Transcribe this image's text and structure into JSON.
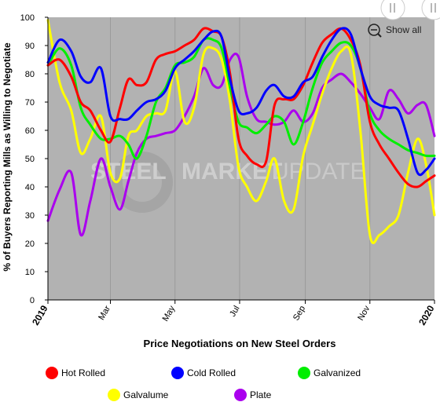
{
  "chart_data": {
    "type": "line",
    "title": "",
    "xlabel": "Price Negotiations on New Steel Orders",
    "ylabel": "% of Buyers Reporting Mills as Willing to Negotiate",
    "ylim": [
      0,
      100
    ],
    "yticks": [
      0,
      10,
      20,
      30,
      40,
      50,
      60,
      70,
      80,
      90,
      100
    ],
    "xticks": [
      {
        "label": "2019",
        "x": "2019-01-01",
        "bold": true
      },
      {
        "label": "Mar",
        "x": "2019-03-01",
        "bold": false
      },
      {
        "label": "May",
        "x": "2019-05-01",
        "bold": false
      },
      {
        "label": "Jul",
        "x": "2019-07-01",
        "bold": false
      },
      {
        "label": "Sep",
        "x": "2019-09-01",
        "bold": false
      },
      {
        "label": "Nov",
        "x": "2019-11-01",
        "bold": false
      },
      {
        "label": "2020",
        "x": "2020-01-01",
        "bold": true
      }
    ],
    "legend_position": "bottom",
    "grid": "vertical",
    "series": [
      {
        "name": "Hot Rolled",
        "color": "#ff0000",
        "points": [
          [
            "2019-01-01",
            83
          ],
          [
            "2019-01-12",
            85
          ],
          [
            "2019-01-23",
            79
          ],
          [
            "2019-02-01",
            70
          ],
          [
            "2019-02-10",
            67
          ],
          [
            "2019-02-20",
            60
          ],
          [
            "2019-03-01",
            56
          ],
          [
            "2019-03-10",
            68
          ],
          [
            "2019-03-18",
            78
          ],
          [
            "2019-03-26",
            76
          ],
          [
            "2019-04-04",
            77
          ],
          [
            "2019-04-13",
            85
          ],
          [
            "2019-04-22",
            87
          ],
          [
            "2019-05-01",
            88
          ],
          [
            "2019-05-10",
            90
          ],
          [
            "2019-05-19",
            92
          ],
          [
            "2019-05-28",
            96
          ],
          [
            "2019-06-06",
            95
          ],
          [
            "2019-06-14",
            93
          ],
          [
            "2019-06-22",
            80
          ],
          [
            "2019-06-30",
            57
          ],
          [
            "2019-07-08",
            51
          ],
          [
            "2019-07-17",
            48
          ],
          [
            "2019-07-26",
            49
          ],
          [
            "2019-08-03",
            69
          ],
          [
            "2019-08-12",
            71
          ],
          [
            "2019-08-21",
            71
          ],
          [
            "2019-08-30",
            76
          ],
          [
            "2019-09-08",
            84
          ],
          [
            "2019-09-17",
            91
          ],
          [
            "2019-09-26",
            94
          ],
          [
            "2019-10-05",
            96
          ],
          [
            "2019-10-14",
            92
          ],
          [
            "2019-10-23",
            83
          ],
          [
            "2019-11-01",
            63
          ],
          [
            "2019-11-10",
            55
          ],
          [
            "2019-11-19",
            50
          ],
          [
            "2019-11-28",
            45
          ],
          [
            "2019-12-07",
            41
          ],
          [
            "2019-12-16",
            40
          ],
          [
            "2019-12-24",
            42
          ],
          [
            "2020-01-01",
            44
          ]
        ]
      },
      {
        "name": "Cold Rolled",
        "color": "#0000ff",
        "points": [
          [
            "2019-01-01",
            84
          ],
          [
            "2019-01-12",
            92
          ],
          [
            "2019-01-23",
            88
          ],
          [
            "2019-02-01",
            79
          ],
          [
            "2019-02-10",
            77
          ],
          [
            "2019-02-20",
            82
          ],
          [
            "2019-03-01",
            65
          ],
          [
            "2019-03-10",
            64
          ],
          [
            "2019-03-18",
            64
          ],
          [
            "2019-03-26",
            67
          ],
          [
            "2019-04-04",
            70
          ],
          [
            "2019-04-13",
            71
          ],
          [
            "2019-04-22",
            74
          ],
          [
            "2019-05-01",
            82
          ],
          [
            "2019-05-10",
            85
          ],
          [
            "2019-05-19",
            88
          ],
          [
            "2019-05-28",
            92
          ],
          [
            "2019-06-06",
            95
          ],
          [
            "2019-06-14",
            93
          ],
          [
            "2019-06-22",
            78
          ],
          [
            "2019-06-30",
            67
          ],
          [
            "2019-07-08",
            66
          ],
          [
            "2019-07-17",
            68
          ],
          [
            "2019-07-26",
            74
          ],
          [
            "2019-08-03",
            76
          ],
          [
            "2019-08-12",
            72
          ],
          [
            "2019-08-21",
            72
          ],
          [
            "2019-08-30",
            77
          ],
          [
            "2019-09-08",
            79
          ],
          [
            "2019-09-17",
            86
          ],
          [
            "2019-09-26",
            92
          ],
          [
            "2019-10-05",
            96
          ],
          [
            "2019-10-14",
            94
          ],
          [
            "2019-10-23",
            82
          ],
          [
            "2019-11-01",
            72
          ],
          [
            "2019-11-10",
            69
          ],
          [
            "2019-11-19",
            68
          ],
          [
            "2019-11-28",
            67
          ],
          [
            "2019-12-07",
            57
          ],
          [
            "2019-12-16",
            45
          ],
          [
            "2019-12-24",
            46
          ],
          [
            "2020-01-01",
            50
          ]
        ]
      },
      {
        "name": "Galvanized",
        "color": "#00ee00",
        "points": [
          [
            "2019-01-01",
            83
          ],
          [
            "2019-01-12",
            89
          ],
          [
            "2019-01-23",
            83
          ],
          [
            "2019-02-01",
            68
          ],
          [
            "2019-02-10",
            62
          ],
          [
            "2019-02-20",
            57
          ],
          [
            "2019-03-01",
            57
          ],
          [
            "2019-03-10",
            58
          ],
          [
            "2019-03-18",
            55
          ],
          [
            "2019-03-26",
            50
          ],
          [
            "2019-04-04",
            58
          ],
          [
            "2019-04-13",
            70
          ],
          [
            "2019-04-22",
            75
          ],
          [
            "2019-05-01",
            83
          ],
          [
            "2019-05-10",
            84
          ],
          [
            "2019-05-19",
            86
          ],
          [
            "2019-05-28",
            92
          ],
          [
            "2019-06-06",
            92
          ],
          [
            "2019-06-14",
            89
          ],
          [
            "2019-06-22",
            75
          ],
          [
            "2019-06-30",
            63
          ],
          [
            "2019-07-08",
            61
          ],
          [
            "2019-07-17",
            59
          ],
          [
            "2019-07-26",
            62
          ],
          [
            "2019-08-03",
            65
          ],
          [
            "2019-08-12",
            63
          ],
          [
            "2019-08-21",
            55
          ],
          [
            "2019-08-30",
            63
          ],
          [
            "2019-09-08",
            75
          ],
          [
            "2019-09-17",
            84
          ],
          [
            "2019-09-26",
            88
          ],
          [
            "2019-10-05",
            91
          ],
          [
            "2019-10-14",
            90
          ],
          [
            "2019-10-23",
            82
          ],
          [
            "2019-11-01",
            66
          ],
          [
            "2019-11-10",
            60
          ],
          [
            "2019-11-19",
            57
          ],
          [
            "2019-11-28",
            55
          ],
          [
            "2019-12-07",
            53
          ],
          [
            "2019-12-16",
            52
          ],
          [
            "2019-12-24",
            51
          ],
          [
            "2020-01-01",
            51
          ]
        ]
      },
      {
        "name": "Galvalume",
        "color": "#ffff00",
        "points": [
          [
            "2019-01-01",
            99
          ],
          [
            "2019-01-12",
            77
          ],
          [
            "2019-01-23",
            67
          ],
          [
            "2019-02-01",
            52
          ],
          [
            "2019-02-10",
            57
          ],
          [
            "2019-02-20",
            65
          ],
          [
            "2019-03-01",
            45
          ],
          [
            "2019-03-10",
            43
          ],
          [
            "2019-03-18",
            58
          ],
          [
            "2019-03-26",
            60
          ],
          [
            "2019-04-04",
            65
          ],
          [
            "2019-04-13",
            66
          ],
          [
            "2019-04-22",
            67
          ],
          [
            "2019-05-01",
            81
          ],
          [
            "2019-05-10",
            63
          ],
          [
            "2019-05-19",
            68
          ],
          [
            "2019-05-28",
            87
          ],
          [
            "2019-06-06",
            89
          ],
          [
            "2019-06-14",
            85
          ],
          [
            "2019-06-22",
            70
          ],
          [
            "2019-06-30",
            47
          ],
          [
            "2019-07-08",
            40
          ],
          [
            "2019-07-17",
            35
          ],
          [
            "2019-07-26",
            42
          ],
          [
            "2019-08-03",
            50
          ],
          [
            "2019-08-12",
            35
          ],
          [
            "2019-08-21",
            32
          ],
          [
            "2019-08-30",
            51
          ],
          [
            "2019-09-08",
            62
          ],
          [
            "2019-09-17",
            73
          ],
          [
            "2019-09-26",
            82
          ],
          [
            "2019-10-05",
            88
          ],
          [
            "2019-10-14",
            87
          ],
          [
            "2019-10-23",
            60
          ],
          [
            "2019-11-01",
            23
          ],
          [
            "2019-11-10",
            23
          ],
          [
            "2019-11-19",
            26
          ],
          [
            "2019-11-28",
            30
          ],
          [
            "2019-12-07",
            45
          ],
          [
            "2019-12-16",
            57
          ],
          [
            "2019-12-24",
            48
          ],
          [
            "2020-01-01",
            30
          ]
        ]
      },
      {
        "name": "Plate",
        "color": "#aa00ee",
        "points": [
          [
            "2019-01-01",
            28
          ],
          [
            "2019-01-12",
            39
          ],
          [
            "2019-01-23",
            45
          ],
          [
            "2019-02-01",
            23
          ],
          [
            "2019-02-10",
            35
          ],
          [
            "2019-02-20",
            50
          ],
          [
            "2019-03-01",
            40
          ],
          [
            "2019-03-10",
            32
          ],
          [
            "2019-03-18",
            42
          ],
          [
            "2019-03-26",
            52
          ],
          [
            "2019-04-04",
            57
          ],
          [
            "2019-04-13",
            58
          ],
          [
            "2019-04-22",
            59
          ],
          [
            "2019-05-01",
            60
          ],
          [
            "2019-05-10",
            65
          ],
          [
            "2019-05-19",
            72
          ],
          [
            "2019-05-28",
            82
          ],
          [
            "2019-06-06",
            76
          ],
          [
            "2019-06-14",
            76
          ],
          [
            "2019-06-22",
            85
          ],
          [
            "2019-06-30",
            86
          ],
          [
            "2019-07-08",
            72
          ],
          [
            "2019-07-17",
            64
          ],
          [
            "2019-07-26",
            63
          ],
          [
            "2019-08-03",
            62
          ],
          [
            "2019-08-12",
            63
          ],
          [
            "2019-08-21",
            67
          ],
          [
            "2019-08-30",
            63
          ],
          [
            "2019-09-08",
            66
          ],
          [
            "2019-09-17",
            75
          ],
          [
            "2019-09-26",
            78
          ],
          [
            "2019-10-05",
            80
          ],
          [
            "2019-10-14",
            77
          ],
          [
            "2019-10-23",
            73
          ],
          [
            "2019-11-01",
            68
          ],
          [
            "2019-11-10",
            64
          ],
          [
            "2019-11-19",
            74
          ],
          [
            "2019-11-28",
            71
          ],
          [
            "2019-12-07",
            66
          ],
          [
            "2019-12-16",
            69
          ],
          [
            "2019-12-24",
            69
          ],
          [
            "2020-01-01",
            58
          ]
        ]
      }
    ]
  },
  "controls": {
    "show_all_label": "Show all",
    "zoom_icon": "zoom-out-icon",
    "range_handle_icon": "drag-handle-icon"
  },
  "watermark": {
    "text_a": "STEEL",
    "text_b": "MARKET",
    "text_c": "UPDATE"
  }
}
